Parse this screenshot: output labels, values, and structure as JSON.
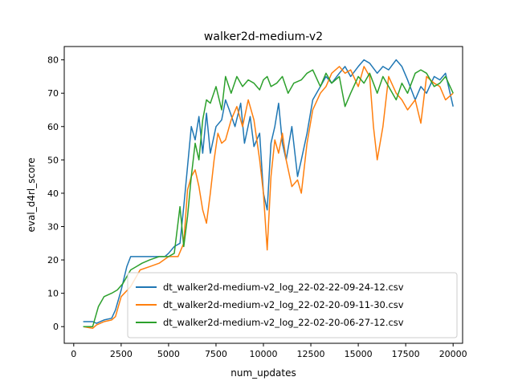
{
  "chart_data": {
    "type": "line",
    "title": "walker2d-medium-v2",
    "xlabel": "num_updates",
    "ylabel": "eval_d4rl_score",
    "xlim": [
      -500,
      20500
    ],
    "ylim": [
      -5,
      84
    ],
    "xticks": [
      0,
      2500,
      5000,
      7500,
      10000,
      12500,
      15000,
      17500,
      20000
    ],
    "xtick_labels": [
      "0",
      "2500",
      "5000",
      "7500",
      "10000",
      "12500",
      "15000",
      "17500",
      "20000"
    ],
    "yticks": [
      0,
      10,
      20,
      30,
      40,
      50,
      60,
      70,
      80
    ],
    "ytick_labels": [
      "0",
      "10",
      "20",
      "30",
      "40",
      "50",
      "60",
      "70",
      "80"
    ],
    "grid": false,
    "legend_position": "lower-right",
    "series": [
      {
        "name": "dt_walker2d-medium-v2_log_22-02-22-09-24-12.csv",
        "color": "#1f77b4",
        "x": [
          500,
          1000,
          1200,
          1600,
          2000,
          2200,
          2500,
          2800,
          3000,
          3500,
          4000,
          4500,
          4800,
          5000,
          5300,
          5600,
          5800,
          6000,
          6200,
          6400,
          6600,
          6800,
          7000,
          7200,
          7500,
          7800,
          8000,
          8200,
          8500,
          8800,
          9000,
          9300,
          9500,
          9800,
          10000,
          10200,
          10400,
          10600,
          10800,
          11000,
          11200,
          11500,
          11800,
          12000,
          12300,
          12600,
          13000,
          13300,
          13600,
          14000,
          14300,
          14600,
          15000,
          15300,
          15600,
          16000,
          16300,
          16600,
          17000,
          17300,
          17600,
          18000,
          18300,
          18600,
          19000,
          19300,
          19600,
          20000
        ],
        "values": [
          1.5,
          1.5,
          1,
          2,
          2.5,
          5,
          11,
          18,
          21,
          21,
          21,
          21,
          21,
          22,
          24,
          25,
          36,
          48,
          60,
          56,
          63,
          52,
          64,
          52,
          60,
          62,
          68,
          65,
          60,
          67,
          55,
          63,
          54,
          58,
          40,
          35,
          55,
          60,
          67,
          55,
          50,
          60,
          45,
          50,
          58,
          68,
          72,
          75,
          73,
          76,
          78,
          75,
          78,
          80,
          79,
          76,
          78,
          77,
          80,
          78,
          74,
          68,
          72,
          70,
          75,
          74,
          76,
          66
        ]
      },
      {
        "name": "dt_walker2d-medium-v2_log_22-02-20-09-11-30.csv",
        "color": "#ff7f0e",
        "x": [
          500,
          1000,
          1200,
          1600,
          2000,
          2200,
          2500,
          3000,
          3500,
          4000,
          4500,
          5000,
          5500,
          5800,
          6000,
          6200,
          6400,
          6600,
          6800,
          7000,
          7200,
          7400,
          7600,
          7800,
          8000,
          8300,
          8600,
          8900,
          9200,
          9500,
          9800,
          10000,
          10200,
          10400,
          10600,
          10800,
          11000,
          11200,
          11500,
          11800,
          12000,
          12300,
          12600,
          13000,
          13300,
          13600,
          14000,
          14300,
          14600,
          15000,
          15300,
          15600,
          15800,
          16000,
          16300,
          16600,
          17000,
          17300,
          17600,
          18000,
          18300,
          18600,
          19000,
          19300,
          19600,
          20000
        ],
        "values": [
          0,
          -0.5,
          0.5,
          1.5,
          2,
          3,
          9,
          12,
          17,
          18,
          19,
          21,
          21,
          25,
          41,
          45,
          47,
          42,
          35,
          31,
          40,
          50,
          58,
          55,
          56,
          62,
          66,
          60,
          68,
          62,
          50,
          40,
          23,
          45,
          56,
          52,
          58,
          50,
          42,
          44,
          40,
          55,
          65,
          70,
          72,
          76,
          78,
          76,
          77,
          72,
          78,
          75,
          60,
          50,
          60,
          75,
          70,
          68,
          65,
          68,
          61,
          75,
          73,
          72,
          68,
          70
        ]
      },
      {
        "name": "dt_walker2d-medium-v2_log_22-02-20-06-27-12.csv",
        "color": "#2ca02c",
        "x": [
          500,
          1000,
          1300,
          1600,
          2000,
          2300,
          2600,
          3000,
          3300,
          3600,
          4000,
          4500,
          5000,
          5300,
          5600,
          5800,
          6000,
          6200,
          6400,
          6600,
          6800,
          7000,
          7200,
          7500,
          7800,
          8000,
          8300,
          8600,
          8900,
          9200,
          9500,
          9800,
          10000,
          10200,
          10400,
          10700,
          11000,
          11300,
          11600,
          12000,
          12300,
          12600,
          13000,
          13300,
          13600,
          14000,
          14300,
          14600,
          15000,
          15300,
          15600,
          16000,
          16300,
          16600,
          17000,
          17300,
          17600,
          18000,
          18300,
          18600,
          19000,
          19300,
          19600,
          20000
        ],
        "values": [
          0,
          0,
          6,
          9,
          10,
          11,
          13,
          17,
          18,
          19,
          20,
          21,
          21,
          22,
          36,
          24,
          33,
          45,
          55,
          50,
          62,
          68,
          67,
          72,
          65,
          75,
          70,
          75,
          72,
          74,
          73,
          71,
          74,
          75,
          72,
          73,
          75,
          70,
          73,
          74,
          76,
          77,
          72,
          76,
          73,
          75,
          66,
          70,
          75,
          73,
          76,
          70,
          75,
          72,
          68,
          73,
          70,
          76,
          77,
          76,
          72,
          73,
          75,
          70
        ]
      }
    ]
  }
}
